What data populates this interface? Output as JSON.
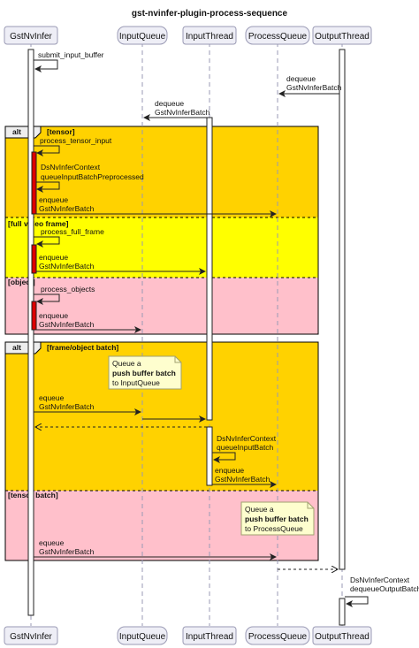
{
  "title": "gst-nvinfer-plugin-process-sequence",
  "participants": [
    "GstNvInfer",
    "InputQueue",
    "InputThread",
    "ProcessQueue",
    "OutputThread"
  ],
  "messages": {
    "submit_input_buffer": "submit_input_buffer",
    "dequeue": "dequeue",
    "gst_batch": "GstNvInferBatch",
    "process_tensor_input": "process_tensor_input",
    "dsnvinfer_context": "DsNvInferContext",
    "queue_preprocessed": "queueInputBatchPreprocessed",
    "enqueue": "enqueue",
    "process_full_frame": "process_full_frame",
    "process_objects": "process_objects",
    "equeue": "equeue",
    "queue_input_batch": "queueInputBatch",
    "dequeue_output_batch": "dequeueOutputBatch"
  },
  "alt1": {
    "keyword": "alt",
    "guard_tensor": "[tensor]",
    "guard_full_video_frame": "[full video frame]",
    "guard_object": "[object]"
  },
  "alt2": {
    "keyword": "alt",
    "guard_frame_object_batch": "[frame/object batch]",
    "guard_tensor_batch": "[tensor batch]"
  },
  "notes": {
    "note1": {
      "line1": "Queue a",
      "line2": "push buffer batch",
      "line3": "to InputQueue"
    },
    "note2": {
      "line1": "Queue a",
      "line2": "push buffer batch",
      "line3": "to ProcessQueue"
    }
  },
  "colors": {
    "alt_orange": "#ffd200",
    "alt_yellow": "#ffff00",
    "alt_pink": "#ffc0cb",
    "activation_red": "#dd0000",
    "note_fill": "#fefece"
  }
}
